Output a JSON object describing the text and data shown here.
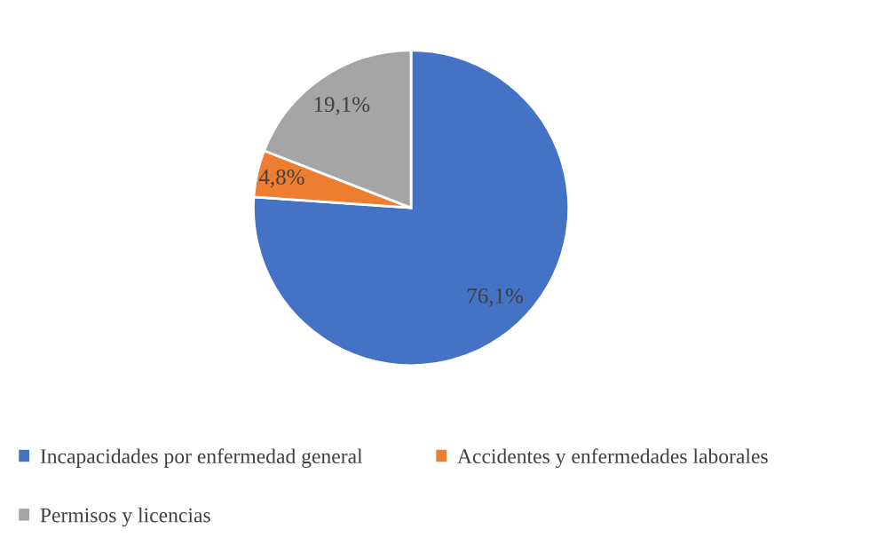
{
  "chart_data": {
    "type": "pie",
    "categories": [
      "Incapacidades por enfermedad general",
      "Accidentes y enfermedades laborales",
      "Permisos y licencias"
    ],
    "values": [
      76.1,
      4.8,
      19.1
    ],
    "colors": [
      "#4472c4",
      "#ed7d31",
      "#a5a5a5"
    ],
    "value_labels": [
      "76,1%",
      "4,8%",
      "19,1%"
    ],
    "legend": "bottom"
  }
}
